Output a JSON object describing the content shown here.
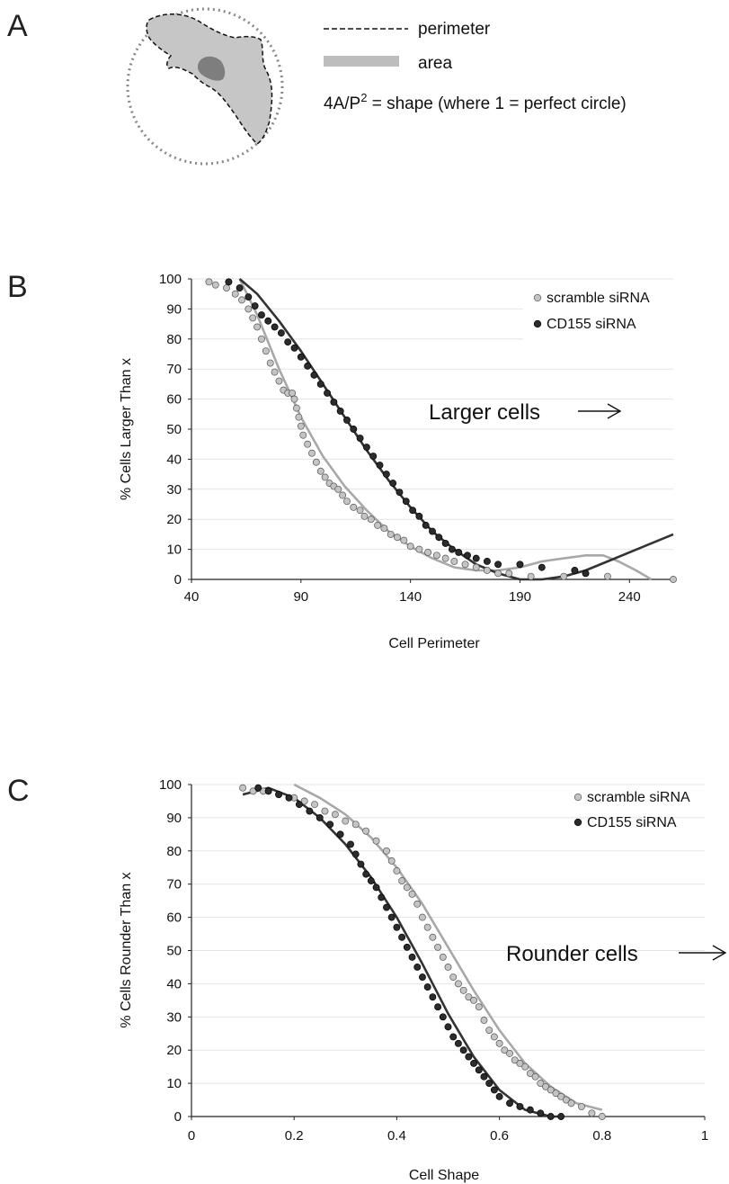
{
  "panel_labels": {
    "a": "A",
    "b": "B",
    "c": "C"
  },
  "panel_a": {
    "legend": {
      "perimeter": "perimeter",
      "area": "area",
      "formula_main": "4A/P",
      "formula_sup": "2",
      "formula_rest": " = shape (where 1 = perfect circle)"
    }
  },
  "colors": {
    "scramble": "#c4c4c4",
    "cd155": "#2c2c2c",
    "scramble_fit": "#a8a8a8",
    "cd155_fit": "#333333"
  },
  "chart_data": [
    {
      "type": "scatter",
      "panel": "B",
      "xlabel": "Cell Perimeter",
      "ylabel": "% Cells Larger Than x",
      "xlim": [
        40,
        260
      ],
      "ylim": [
        0,
        100
      ],
      "xticks": [
        40,
        90,
        140,
        190,
        240
      ],
      "yticks": [
        0,
        10,
        20,
        30,
        40,
        50,
        60,
        70,
        80,
        90,
        100
      ],
      "grid": "horizontal",
      "legend_position": "top-right",
      "annotation": "Larger cells",
      "series": [
        {
          "name": "scramble siRNA",
          "marker": "scramble",
          "points": [
            [
              48,
              99
            ],
            [
              51,
              98
            ],
            [
              56,
              97
            ],
            [
              60,
              95
            ],
            [
              63,
              93
            ],
            [
              66,
              90
            ],
            [
              68,
              87
            ],
            [
              70,
              84
            ],
            [
              72,
              80
            ],
            [
              74,
              76
            ],
            [
              76,
              72
            ],
            [
              78,
              69
            ],
            [
              80,
              66
            ],
            [
              82,
              63
            ],
            [
              84,
              62
            ],
            [
              86,
              62
            ],
            [
              87,
              60
            ],
            [
              88,
              57
            ],
            [
              89,
              54
            ],
            [
              90,
              51
            ],
            [
              91,
              48
            ],
            [
              93,
              45
            ],
            [
              95,
              42
            ],
            [
              97,
              39
            ],
            [
              99,
              36
            ],
            [
              101,
              34
            ],
            [
              103,
              32
            ],
            [
              105,
              31
            ],
            [
              107,
              30
            ],
            [
              109,
              28
            ],
            [
              111,
              26
            ],
            [
              114,
              24
            ],
            [
              117,
              23
            ],
            [
              119,
              21
            ],
            [
              122,
              20
            ],
            [
              125,
              18
            ],
            [
              128,
              17
            ],
            [
              131,
              15
            ],
            [
              134,
              14
            ],
            [
              137,
              13
            ],
            [
              140,
              11
            ],
            [
              144,
              10
            ],
            [
              148,
              9
            ],
            [
              152,
              8
            ],
            [
              156,
              7
            ],
            [
              160,
              6
            ],
            [
              165,
              5
            ],
            [
              170,
              4
            ],
            [
              175,
              3
            ],
            [
              180,
              2
            ],
            [
              185,
              2
            ],
            [
              195,
              1
            ],
            [
              210,
              1
            ],
            [
              230,
              1
            ],
            [
              260,
              0
            ]
          ]
        },
        {
          "name": "CD155 siRNA",
          "marker": "cd155",
          "points": [
            [
              57,
              99
            ],
            [
              62,
              97
            ],
            [
              66,
              94
            ],
            [
              69,
              91
            ],
            [
              72,
              88
            ],
            [
              75,
              86
            ],
            [
              78,
              84
            ],
            [
              81,
              82
            ],
            [
              84,
              79
            ],
            [
              87,
              77
            ],
            [
              90,
              74
            ],
            [
              93,
              71
            ],
            [
              96,
              68
            ],
            [
              99,
              65
            ],
            [
              102,
              62
            ],
            [
              105,
              59
            ],
            [
              108,
              56
            ],
            [
              111,
              53
            ],
            [
              114,
              50
            ],
            [
              117,
              47
            ],
            [
              120,
              44
            ],
            [
              123,
              41
            ],
            [
              126,
              38
            ],
            [
              129,
              35
            ],
            [
              132,
              32
            ],
            [
              135,
              29
            ],
            [
              138,
              26
            ],
            [
              141,
              23
            ],
            [
              144,
              21
            ],
            [
              147,
              18
            ],
            [
              150,
              16
            ],
            [
              153,
              14
            ],
            [
              156,
              12
            ],
            [
              159,
              10
            ],
            [
              162,
              9
            ],
            [
              166,
              8
            ],
            [
              170,
              7
            ],
            [
              175,
              6
            ],
            [
              180,
              5
            ],
            [
              190,
              5
            ],
            [
              200,
              4
            ],
            [
              215,
              3
            ],
            [
              220,
              2
            ]
          ]
        }
      ],
      "fits": [
        {
          "series": "scramble siRNA",
          "curve": [
            [
              62,
              100
            ],
            [
              70,
              88
            ],
            [
              80,
              70
            ],
            [
              90,
              54
            ],
            [
              100,
              41
            ],
            [
              110,
              31
            ],
            [
              120,
              23
            ],
            [
              130,
              16
            ],
            [
              140,
              11
            ],
            [
              150,
              7
            ],
            [
              160,
              4
            ],
            [
              170,
              3
            ],
            [
              180,
              3
            ],
            [
              190,
              4
            ],
            [
              200,
              6
            ],
            [
              210,
              7
            ],
            [
              220,
              8
            ],
            [
              228,
              8
            ],
            [
              235,
              6
            ],
            [
              243,
              3
            ],
            [
              250,
              0
            ]
          ]
        },
        {
          "series": "CD155 siRNA",
          "curve": [
            [
              62,
              100
            ],
            [
              70,
              95
            ],
            [
              80,
              86
            ],
            [
              90,
              76
            ],
            [
              100,
              65
            ],
            [
              110,
              54
            ],
            [
              120,
              43
            ],
            [
              130,
              33
            ],
            [
              140,
              24
            ],
            [
              150,
              16
            ],
            [
              160,
              10
            ],
            [
              170,
              5
            ],
            [
              180,
              2
            ],
            [
              190,
              0
            ],
            [
              200,
              0
            ],
            [
              210,
              1
            ],
            [
              220,
              3
            ],
            [
              230,
              6
            ],
            [
              240,
              9
            ],
            [
              250,
              12
            ],
            [
              260,
              15
            ]
          ]
        }
      ]
    },
    {
      "type": "scatter",
      "panel": "C",
      "xlabel": "Cell Shape",
      "ylabel": "% Cells Rounder Than x",
      "xlim": [
        0,
        1
      ],
      "ylim": [
        0,
        100
      ],
      "xticks": [
        0,
        0.2,
        0.4,
        0.6,
        0.8,
        1
      ],
      "yticks": [
        0,
        10,
        20,
        30,
        40,
        50,
        60,
        70,
        80,
        90,
        100
      ],
      "grid": "horizontal",
      "legend_position": "top-right",
      "annotation": "Rounder cells",
      "series": [
        {
          "name": "scramble siRNA",
          "marker": "scramble",
          "points": [
            [
              0.1,
              99
            ],
            [
              0.12,
              98
            ],
            [
              0.14,
              98
            ],
            [
              0.17,
              97
            ],
            [
              0.2,
              96
            ],
            [
              0.22,
              95
            ],
            [
              0.24,
              94
            ],
            [
              0.26,
              92
            ],
            [
              0.28,
              91
            ],
            [
              0.3,
              89
            ],
            [
              0.32,
              88
            ],
            [
              0.34,
              86
            ],
            [
              0.36,
              83
            ],
            [
              0.38,
              80
            ],
            [
              0.39,
              77
            ],
            [
              0.4,
              74
            ],
            [
              0.41,
              71
            ],
            [
              0.42,
              69
            ],
            [
              0.43,
              67
            ],
            [
              0.44,
              64
            ],
            [
              0.45,
              60
            ],
            [
              0.46,
              57
            ],
            [
              0.47,
              54
            ],
            [
              0.48,
              51
            ],
            [
              0.49,
              48
            ],
            [
              0.5,
              45
            ],
            [
              0.51,
              42
            ],
            [
              0.52,
              40
            ],
            [
              0.53,
              38
            ],
            [
              0.54,
              36
            ],
            [
              0.55,
              35
            ],
            [
              0.56,
              33
            ],
            [
              0.57,
              29
            ],
            [
              0.58,
              26
            ],
            [
              0.59,
              24
            ],
            [
              0.6,
              22
            ],
            [
              0.61,
              20
            ],
            [
              0.62,
              19
            ],
            [
              0.63,
              17
            ],
            [
              0.64,
              16
            ],
            [
              0.65,
              15
            ],
            [
              0.66,
              13
            ],
            [
              0.67,
              12
            ],
            [
              0.68,
              10
            ],
            [
              0.69,
              9
            ],
            [
              0.7,
              8
            ],
            [
              0.71,
              7
            ],
            [
              0.72,
              6
            ],
            [
              0.73,
              5
            ],
            [
              0.74,
              4
            ],
            [
              0.76,
              3
            ],
            [
              0.78,
              1
            ],
            [
              0.8,
              0
            ]
          ]
        },
        {
          "name": "CD155 siRNA",
          "marker": "cd155",
          "points": [
            [
              0.13,
              99
            ],
            [
              0.15,
              98
            ],
            [
              0.17,
              97
            ],
            [
              0.19,
              96
            ],
            [
              0.21,
              94
            ],
            [
              0.23,
              92
            ],
            [
              0.25,
              90
            ],
            [
              0.27,
              88
            ],
            [
              0.29,
              85
            ],
            [
              0.31,
              82
            ],
            [
              0.32,
              79
            ],
            [
              0.33,
              76
            ],
            [
              0.34,
              73
            ],
            [
              0.35,
              71
            ],
            [
              0.36,
              69
            ],
            [
              0.37,
              66
            ],
            [
              0.38,
              63
            ],
            [
              0.39,
              60
            ],
            [
              0.4,
              57
            ],
            [
              0.41,
              54
            ],
            [
              0.42,
              51
            ],
            [
              0.43,
              48
            ],
            [
              0.44,
              45
            ],
            [
              0.45,
              42
            ],
            [
              0.46,
              39
            ],
            [
              0.47,
              36
            ],
            [
              0.48,
              33
            ],
            [
              0.49,
              30
            ],
            [
              0.5,
              27
            ],
            [
              0.51,
              24
            ],
            [
              0.52,
              22
            ],
            [
              0.53,
              20
            ],
            [
              0.54,
              18
            ],
            [
              0.55,
              16
            ],
            [
              0.56,
              14
            ],
            [
              0.57,
              12
            ],
            [
              0.58,
              10
            ],
            [
              0.59,
              8
            ],
            [
              0.6,
              6
            ],
            [
              0.62,
              4
            ],
            [
              0.64,
              3
            ],
            [
              0.66,
              2
            ],
            [
              0.68,
              1
            ],
            [
              0.7,
              0
            ],
            [
              0.72,
              0
            ]
          ]
        }
      ],
      "fits": [
        {
          "series": "scramble siRNA",
          "curve": [
            [
              0.2,
              100
            ],
            [
              0.25,
              96
            ],
            [
              0.3,
              91
            ],
            [
              0.35,
              84
            ],
            [
              0.4,
              75
            ],
            [
              0.45,
              64
            ],
            [
              0.5,
              51
            ],
            [
              0.55,
              38
            ],
            [
              0.6,
              26
            ],
            [
              0.65,
              16
            ],
            [
              0.7,
              9
            ],
            [
              0.75,
              4
            ],
            [
              0.8,
              2
            ]
          ]
        },
        {
          "series": "CD155 siRNA",
          "curve": [
            [
              0.1,
              97
            ],
            [
              0.15,
              99
            ],
            [
              0.2,
              96
            ],
            [
              0.25,
              90
            ],
            [
              0.3,
              82
            ],
            [
              0.35,
              72
            ],
            [
              0.4,
              60
            ],
            [
              0.45,
              46
            ],
            [
              0.5,
              31
            ],
            [
              0.55,
              18
            ],
            [
              0.6,
              8
            ],
            [
              0.65,
              2
            ],
            [
              0.7,
              0
            ],
            [
              0.72,
              0
            ]
          ]
        }
      ]
    }
  ]
}
